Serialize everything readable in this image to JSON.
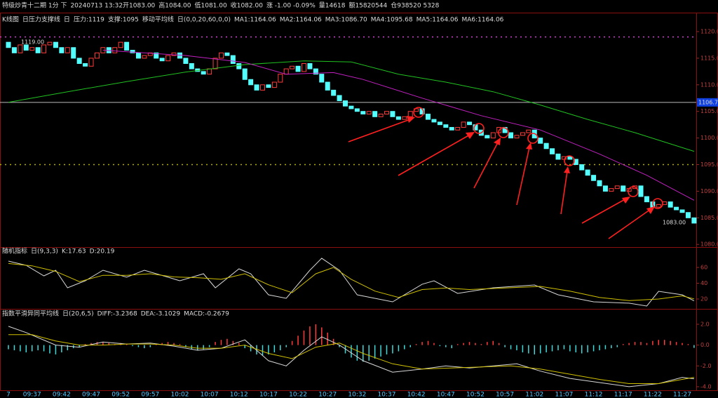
{
  "title_bar": [
    {
      "text": "特级炒青十二期 1分 下",
      "color": "#dddddd"
    },
    {
      "text": "20240713 13:32开1083.00",
      "color": "#dddddd"
    },
    {
      "text": "高1084.00",
      "color": "#ff4040"
    },
    {
      "text": "低1081.00",
      "color": "#dddddd"
    },
    {
      "text": "收1082.00",
      "color": "#dddddd"
    },
    {
      "text": "涨 -1.00 -0.09%",
      "color": "#dddddd"
    },
    {
      "text": "量14618",
      "color": "#dddddd"
    },
    {
      "text": "额15820544",
      "color": "#dddddd"
    },
    {
      "text": "仓938520 5328",
      "color": "#dddddd"
    }
  ],
  "chart_data": [
    {
      "type": "candlestick",
      "header": [
        {
          "text": "K线图",
          "color": "#dddddd"
        },
        {
          "text": "日压力支撑线",
          "color": "#dddddd"
        },
        {
          "text": "日",
          "color": "#dddddd"
        },
        {
          "text": "压力:1119",
          "color": "#ff50ff"
        },
        {
          "text": "支撑:1095",
          "color": "#40e040"
        },
        {
          "text": "移动平均线",
          "color": "#dddddd"
        },
        {
          "text": "日(0,0,20,60,0,0)",
          "color": "#dddddd"
        },
        {
          "text": "MA1:1164.06",
          "color": "#ffffff"
        },
        {
          "text": "MA2:1164.06",
          "color": "#ffff00"
        },
        {
          "text": "MA3:1086.70",
          "color": "#ff40ff"
        },
        {
          "text": "MA4:1095.68",
          "color": "#40ff40"
        },
        {
          "text": "MA5:1164.06",
          "color": "#4060ff"
        },
        {
          "text": "MA6:1164.06",
          "color": "#aaaaaa"
        }
      ],
      "categories": [
        "7",
        null,
        null,
        null,
        "09:37",
        null,
        null,
        null,
        null,
        "09:42",
        null,
        null,
        null,
        null,
        "09:47",
        null,
        null,
        null,
        null,
        "09:52",
        null,
        null,
        null,
        null,
        "09:57",
        null,
        null,
        null,
        null,
        "10:02",
        null,
        null,
        null,
        null,
        "10:07",
        null,
        null,
        null,
        null,
        "10:12",
        null,
        null,
        null,
        null,
        "10:17",
        null,
        null,
        null,
        null,
        "10:22",
        null,
        null,
        null,
        null,
        "10:27",
        null,
        null,
        null,
        null,
        "10:32",
        null,
        null,
        null,
        null,
        "10:37",
        null,
        null,
        null,
        null,
        "10:42",
        null,
        null,
        null,
        null,
        "10:47",
        null,
        null,
        null,
        null,
        "10:52",
        null,
        null,
        null,
        null,
        "10:57",
        null,
        null,
        null,
        null,
        "11:02",
        null,
        null,
        null,
        null,
        "11:07",
        null,
        null,
        null,
        null,
        "11:12",
        null,
        null,
        null,
        null,
        "11:17",
        null,
        null,
        null,
        null,
        "11:22",
        null,
        null,
        null,
        null,
        "11:27",
        null,
        null
      ],
      "open": [
        1118,
        1117,
        1116,
        1117.5,
        1116.5,
        1117,
        1116,
        1117.5,
        1118,
        1117,
        1116,
        1117,
        1115,
        1114,
        1113.5,
        1115,
        1116,
        1117,
        1116,
        1117,
        1118,
        1116.5,
        1116,
        1115,
        1115.5,
        1116,
        1115,
        1114.5,
        1115.5,
        1116,
        1115,
        1114,
        1113,
        1112.5,
        1112,
        1113,
        1115,
        1116,
        1115.5,
        1114,
        1113,
        1111,
        1110,
        1109,
        1110,
        1109.5,
        1110.5,
        1112,
        1113,
        1113.5,
        1112.5,
        1114,
        1113,
        1112,
        1110.5,
        1109,
        1108,
        1107,
        1106,
        1105.5,
        1105,
        1104.5,
        1105,
        1104,
        1104.5,
        1105,
        1104,
        1103.5,
        1104,
        1105,
        1105.5,
        1104.5,
        1103.5,
        1103,
        1102.5,
        1102,
        1101.5,
        1102,
        1103,
        1102.5,
        1101.5,
        1100.5,
        1100,
        1101,
        1102,
        1101,
        1100,
        1100.5,
        1101,
        1101.5,
        1100,
        1099,
        1098,
        1097,
        1096,
        1096.5,
        1096,
        1095,
        1094,
        1093,
        1092,
        1091,
        1090,
        1090.5,
        1091,
        1090,
        1090.5,
        1091,
        1089,
        1088,
        1087,
        1087.5,
        1088,
        1087,
        1086.5,
        1086,
        1085
      ],
      "close": [
        1117,
        1116,
        1117.5,
        1116.5,
        1117,
        1116,
        1117.5,
        1118,
        1117,
        1116,
        1117,
        1115,
        1114,
        1113.5,
        1115,
        1116,
        1117,
        1116,
        1117,
        1118,
        1116.5,
        1116,
        1115,
        1115.5,
        1116,
        1115,
        1114.5,
        1115.5,
        1116,
        1115,
        1114,
        1113,
        1112.5,
        1112,
        1113,
        1115,
        1116,
        1115.5,
        1114,
        1113,
        1111,
        1110,
        1109,
        1110,
        1109.5,
        1110.5,
        1112,
        1113,
        1113.5,
        1112.5,
        1114,
        1113,
        1112,
        1110.5,
        1109,
        1108,
        1107,
        1106,
        1105.5,
        1105,
        1104.5,
        1105,
        1104,
        1104.5,
        1105,
        1104,
        1103.5,
        1104,
        1105,
        1105.5,
        1104.5,
        1103.5,
        1103,
        1102.5,
        1102,
        1101.5,
        1102,
        1103,
        1102.5,
        1101.5,
        1100.5,
        1100,
        1101,
        1102,
        1101,
        1100,
        1100.5,
        1101,
        1101.5,
        1100,
        1099,
        1098,
        1097,
        1096,
        1096.5,
        1096,
        1095,
        1094,
        1093,
        1092,
        1091,
        1090,
        1090.5,
        1091,
        1090,
        1090.5,
        1091,
        1089,
        1088,
        1087,
        1087.5,
        1088,
        1087,
        1086.5,
        1086,
        1085,
        1084
      ],
      "up_color": "#ff3c3c",
      "down_color": "#54ffff",
      "series": [
        {
          "color": "#20c020",
          "x": [
            0,
            10,
            20,
            30,
            40,
            50,
            58,
            66,
            74,
            82,
            90,
            98,
            106,
            116
          ],
          "values": [
            1106.7,
            1108.7,
            1110.6,
            1112.4,
            1113.8,
            1114.5,
            1114.3,
            1112,
            1110.5,
            1108.7,
            1106.2,
            1103.5,
            1101,
            1097.5
          ]
        },
        {
          "color": "#c020c0",
          "x": [
            16,
            30,
            40,
            47,
            55,
            60,
            70,
            80,
            90,
            100,
            108,
            116
          ],
          "values": [
            1116.5,
            1115.5,
            1114.2,
            1112,
            1112.3,
            1111,
            1107.5,
            1104.2,
            1101.5,
            1097,
            1093,
            1088.3
          ]
        }
      ],
      "hlines": [
        {
          "value": 1106.7,
          "label": "1106.7",
          "color": "#bbbbbb",
          "dash": false
        },
        {
          "value": 1119,
          "color": "#d040d0",
          "dash": true
        },
        {
          "value": 1095,
          "color": "#b0b000",
          "dash": true
        }
      ],
      "annotations": [
        {
          "text": "1119.00"
        },
        {
          "text": "1083.00"
        }
      ],
      "ylim": [
        1079.5,
        1123.3
      ],
      "yticks": [
        {
          "value": 1120,
          "label": "1120.0"
        },
        {
          "value": 1115,
          "label": "1115.0"
        },
        {
          "value": 1110,
          "label": "1110.0"
        },
        {
          "value": 1105,
          "label": "1105.0"
        },
        {
          "value": 1100,
          "label": "1100.0"
        },
        {
          "value": 1095,
          "label": "1095.0"
        },
        {
          "value": 1090,
          "label": "1090.0"
        },
        {
          "value": 1085,
          "label": "1085.0"
        },
        {
          "value": 1080,
          "label": "1080.0"
        }
      ]
    },
    {
      "type": "line",
      "header": [
        {
          "text": "随机指标",
          "color": "#dddddd"
        },
        {
          "text": "日(9,3,3)",
          "color": "#dddddd"
        },
        {
          "text": "K:17.63",
          "color": "#ffffff"
        },
        {
          "text": "D:20.19",
          "color": "#e0e000"
        }
      ],
      "series": [
        {
          "color": "#d8d8d8",
          "x": [
            0,
            3,
            6,
            8,
            10,
            13,
            16,
            20,
            23,
            27,
            29,
            33,
            35,
            39,
            41,
            44,
            47,
            51,
            53,
            56,
            59,
            65,
            70,
            72,
            76,
            82,
            89,
            93,
            99,
            105,
            108,
            110,
            114,
            116
          ],
          "values": [
            68,
            62.7,
            49.3,
            56.4,
            34.2,
            43.1,
            56.4,
            47.6,
            56.4,
            47.6,
            43.1,
            52,
            34.2,
            58.2,
            52,
            25.3,
            20.9,
            56.4,
            71.6,
            56.4,
            25.3,
            16.4,
            38.7,
            43.1,
            27.1,
            34.2,
            37.8,
            25.3,
            16.4,
            14.7,
            11.1,
            29.8,
            25.3,
            17.63
          ]
        },
        {
          "color": "#d0c000",
          "x": [
            0,
            4,
            8,
            12,
            16,
            20,
            24,
            28,
            32,
            36,
            40,
            44,
            48,
            52,
            55,
            58,
            62,
            66,
            70,
            74,
            78,
            84,
            90,
            95,
            100,
            105,
            110,
            114,
            116
          ],
          "values": [
            65,
            62,
            55,
            42,
            50,
            50,
            52,
            48,
            47,
            45,
            52,
            38,
            28,
            52,
            60,
            45,
            30,
            22,
            32,
            34,
            32,
            34,
            36,
            30,
            22,
            18,
            20,
            24,
            20.19
          ]
        }
      ],
      "ylim": [
        10.2,
        76
      ],
      "yticks": [
        60,
        40,
        20
      ]
    },
    {
      "type": "line",
      "header": [
        {
          "text": "指数平滑异同平均线",
          "color": "#dddddd"
        },
        {
          "text": "日(20,6,5)",
          "color": "#dddddd"
        },
        {
          "text": "DIFF:-3.2368",
          "color": "#ffffff"
        },
        {
          "text": "DEA:-3.1029",
          "color": "#e0e000"
        },
        {
          "text": "MACD:-0.2679",
          "color": "#ff40ff"
        }
      ],
      "bars": {
        "up_color": "#ff3c3c",
        "down_color": "#40d8d8",
        "values": [
          -0.4,
          -0.5,
          -0.6,
          -0.7,
          -0.6,
          -0.5,
          -0.6,
          -0.8,
          -0.9,
          -0.7,
          -0.5,
          -0.3,
          -0.2,
          0.1,
          0.2,
          0.3,
          0.3,
          0.2,
          0.1,
          0.2,
          0.1,
          -0.1,
          -0.2,
          -0.3,
          -0.2,
          0.1,
          0.2,
          0.3,
          0.2,
          0.1,
          -0.2,
          -0.4,
          -0.5,
          -0.4,
          -0.2,
          0.3,
          0.5,
          0.6,
          0.4,
          0.2,
          -0.3,
          -0.6,
          -0.9,
          -1.0,
          -0.9,
          -0.7,
          -0.5,
          -0.2,
          0.4,
          0.9,
          1.4,
          1.8,
          2.0,
          1.7,
          1.2,
          0.6,
          -0.2,
          -0.8,
          -1.2,
          -1.5,
          -1.6,
          -1.5,
          -1.3,
          -1.1,
          -0.9,
          -0.8,
          -0.6,
          -0.4,
          -0.2,
          0.1,
          0.3,
          0.4,
          0.2,
          -0.1,
          -0.2,
          -0.3,
          0.1,
          0.2,
          0.3,
          0.2,
          0.1,
          0.3,
          0.4,
          0.2,
          -0.2,
          -0.4,
          -0.5,
          -0.7,
          -0.8,
          -0.9,
          -0.8,
          -0.7,
          -0.6,
          -0.5,
          -0.4,
          -0.6,
          -0.7,
          -0.8,
          -0.7,
          -0.6,
          -0.5,
          -0.4,
          -0.3,
          -0.2,
          0.1,
          0.2,
          0.3,
          0.3,
          0.2,
          0.4,
          0.5,
          0.5,
          0.4,
          0.3,
          0.2,
          0.1,
          -0.2679
        ]
      },
      "series": [
        {
          "color": "#d8d8d8",
          "x": [
            0,
            3,
            8,
            12,
            16,
            20,
            24,
            28,
            32,
            36,
            40,
            44,
            47,
            50,
            53,
            56,
            60,
            65,
            70,
            74,
            78,
            82,
            86,
            90,
            95,
            100,
            105,
            110,
            114,
            116
          ],
          "values": [
            1.8,
            1.2,
            0,
            -0.2,
            0.3,
            0.1,
            0.2,
            -0.1,
            -0.5,
            -0.3,
            0.5,
            -1.5,
            -2,
            -0.5,
            0.8,
            0,
            -1.5,
            -2.6,
            -2.3,
            -2,
            -2.2,
            -2,
            -1.8,
            -2.5,
            -3.2,
            -3.6,
            -4,
            -3.7,
            -3.1,
            -3.2368
          ]
        },
        {
          "color": "#d0c000",
          "x": [
            0,
            4,
            8,
            12,
            16,
            20,
            24,
            28,
            32,
            36,
            40,
            44,
            48,
            52,
            56,
            60,
            65,
            70,
            75,
            80,
            85,
            90,
            95,
            100,
            105,
            110,
            114,
            116
          ],
          "values": [
            1.0,
            1.0,
            0.4,
            0,
            0,
            0.1,
            0.1,
            0,
            -0.3,
            -0.3,
            0,
            -0.8,
            -1.3,
            -0.2,
            0.2,
            -0.8,
            -1.8,
            -2.3,
            -2.2,
            -2.1,
            -2.0,
            -2.3,
            -2.8,
            -3.3,
            -3.7,
            -3.7,
            -3.3,
            -3.1029
          ]
        }
      ],
      "ylim": [
        -4.41,
        2.47
      ],
      "yticks": [
        {
          "value": 2,
          "label": "2.0"
        },
        {
          "value": 0,
          "label": "0.0"
        },
        {
          "value": -2,
          "label": "-2.0"
        },
        {
          "value": -4,
          "label": "-4.0"
        }
      ]
    }
  ]
}
